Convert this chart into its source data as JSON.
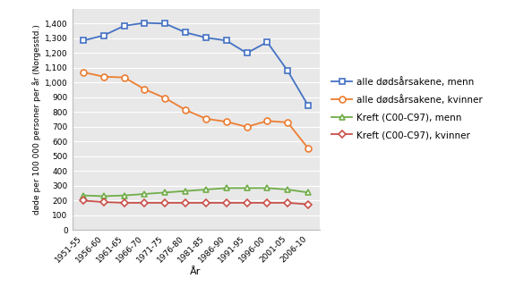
{
  "x_labels": [
    "1951-55",
    "1956-60",
    "1961-65",
    "1966-70",
    "1971-75",
    "1976-80",
    "1981-85",
    "1986-90",
    "1991-95",
    "1996-00",
    "2001-05",
    "2006-10"
  ],
  "alle_menn": [
    1285,
    1320,
    1385,
    1405,
    1400,
    1340,
    1305,
    1285,
    1200,
    1275,
    1080,
    845
  ],
  "alle_kvinner": [
    1070,
    1040,
    1035,
    955,
    895,
    815,
    755,
    735,
    700,
    740,
    730,
    555
  ],
  "kreft_menn": [
    235,
    230,
    235,
    245,
    255,
    265,
    275,
    285,
    285,
    285,
    275,
    255
  ],
  "kreft_kvinner": [
    200,
    190,
    185,
    185,
    185,
    185,
    185,
    185,
    185,
    185,
    185,
    175
  ],
  "line_colors": {
    "alle_menn": "#4472C4",
    "alle_kvinner": "#ED7D31",
    "kreft_menn": "#70AD47",
    "kreft_kvinner": "#C9504A"
  },
  "legend_labels": [
    "alle dødsårsakene, menn",
    "alle dødsårsakene, kvinner",
    "Kreft (C00-C97), menn",
    "Kreft (C00-C97), kvinner"
  ],
  "ylabel": "døde per 100 000 personer per år (Norgesstd.)",
  "xlabel": "År",
  "ylim": [
    0,
    1500
  ],
  "yticks": [
    0,
    100,
    200,
    300,
    400,
    500,
    600,
    700,
    800,
    900,
    1000,
    1100,
    1200,
    1300,
    1400
  ],
  "background_color": "#FFFFFF",
  "plot_bg_color": "#E8E8E8",
  "grid_color": "#FFFFFF"
}
